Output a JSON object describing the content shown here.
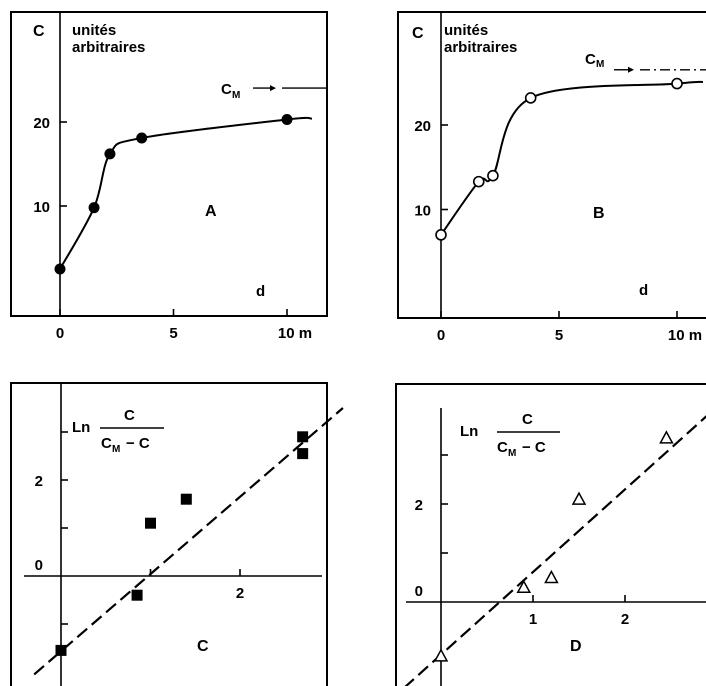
{
  "chart_data": [
    {
      "type": "line",
      "panel": "A",
      "ylabel": "C",
      "units_line1": "unités",
      "units_line2": "arbitraires",
      "xlabel": "d",
      "x_unit": "m",
      "asymptote_label": "C",
      "asymptote_sub": "M",
      "x": [
        0,
        1.5,
        2.2,
        3.6,
        10
      ],
      "y": [
        2.5,
        9.8,
        16.2,
        18.1,
        20.3
      ],
      "asymptote_value": 23.8,
      "xlim": [
        -1.2,
        11.5
      ],
      "ylim": [
        -1,
        28
      ],
      "xticks": [
        0,
        5,
        10
      ],
      "xtick_labels": [
        "0",
        "5",
        "10 m"
      ],
      "yticks": [
        10,
        20
      ],
      "ytick_labels": [
        "10",
        "20"
      ],
      "marker": "filled-circle"
    },
    {
      "type": "line",
      "panel": "B",
      "ylabel": "C",
      "units_line1": "unités",
      "units_line2": "arbitraires",
      "xlabel": "d",
      "x_unit": "m",
      "asymptote_label": "C",
      "asymptote_sub": "M",
      "x": [
        0,
        1.6,
        2.2,
        3.8,
        10
      ],
      "y": [
        7.0,
        13.3,
        14.0,
        23.2,
        24.9
      ],
      "asymptote_value": 26.3,
      "xlim": [
        -1.2,
        11.5
      ],
      "ylim": [
        -1,
        30
      ],
      "xticks": [
        0,
        5,
        10
      ],
      "xtick_labels": [
        "0",
        "5",
        "10 m"
      ],
      "yticks": [
        10,
        20
      ],
      "ytick_labels": [
        "10",
        "20"
      ],
      "marker": "open-circle"
    },
    {
      "type": "scatter",
      "panel": "C",
      "ylabel": "Ln",
      "frac_num": "C",
      "frac_den": "C",
      "frac_den_sub": "M",
      "frac_den_tail": "− C",
      "points": [
        [
          0.0,
          -1.55
        ],
        [
          0.85,
          -0.4
        ],
        [
          1.0,
          1.1
        ],
        [
          1.4,
          1.6
        ],
        [
          2.7,
          2.9
        ],
        [
          2.7,
          2.55
        ]
      ],
      "fit_line": {
        "x": [
          -0.3,
          3.15
        ],
        "y": [
          -2.05,
          3.5
        ]
      },
      "xlim": [
        -0.5,
        3.2
      ],
      "ylim": [
        -2.2,
        4.3
      ],
      "xticks": [
        1,
        2
      ],
      "xtick_labels": [
        "",
        "2"
      ],
      "yticks": [
        0,
        2
      ],
      "ytick_labels": [
        "0",
        "2"
      ],
      "marker": "filled-square"
    },
    {
      "type": "scatter",
      "panel": "D",
      "ylabel": "Ln",
      "frac_num": "C",
      "frac_den": "C",
      "frac_den_sub": "M",
      "frac_den_tail": "− C",
      "points": [
        [
          0.0,
          -1.1
        ],
        [
          0.9,
          0.3
        ],
        [
          1.2,
          0.5
        ],
        [
          1.5,
          2.1
        ],
        [
          2.45,
          3.35
        ]
      ],
      "fit_line": {
        "x": [
          -0.4,
          2.95
        ],
        "y": [
          -1.75,
          3.9
        ]
      },
      "xlim": [
        -0.5,
        2.95
      ],
      "ylim": [
        -2,
        4.2
      ],
      "xticks": [
        1,
        2
      ],
      "xtick_labels": [
        "1",
        "2"
      ],
      "yticks": [
        0,
        2
      ],
      "ytick_labels": [
        "0",
        "2"
      ],
      "marker": "open-triangle"
    }
  ]
}
